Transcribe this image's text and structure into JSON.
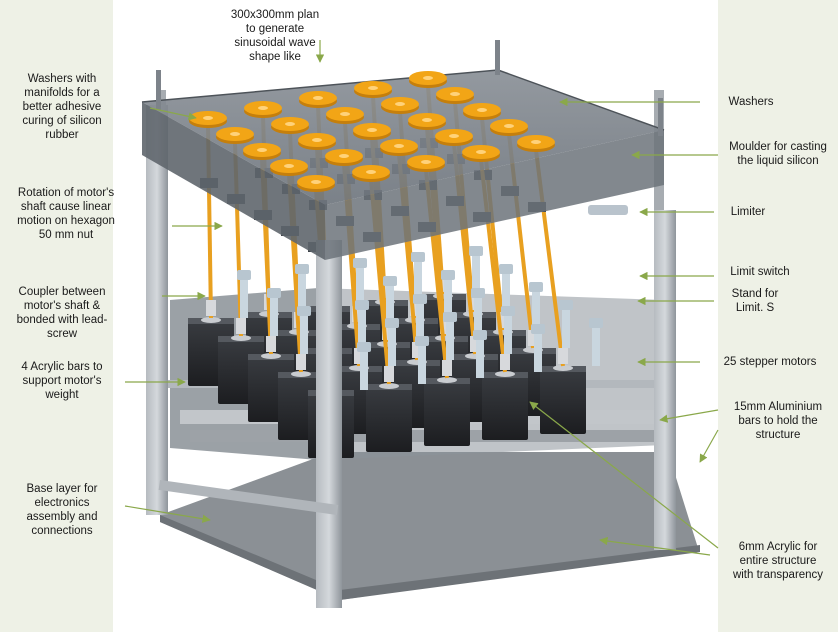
{
  "labels": {
    "top_plan": "300x300mm plan\nto generate\nsinusoidal wave\nshape like",
    "washers_manifolds": "Washers with\nmanifolds for a\nbetter adhesive\ncuring of silicon\nrubber",
    "rotation": "Rotation of motor's\nshaft cause linear\nmotion on hexagon\n50 mm nut",
    "coupler": "Coupler between\nmotor's shaft &\nbonded with lead-\nscrew",
    "acrylic_bars": "4 Acrylic bars to\nsupport motor's\nweight",
    "base_layer": "Base layer for\nelectronics\nassembly and\nconnections",
    "washers": "Washers",
    "moulder": "Moulder for casting\nthe liquid silicon",
    "limiter": "Limiter",
    "limit_switch": "Limit switch",
    "stand": "Stand for\nLimit. S",
    "stepper_motors": "25 stepper motors",
    "aluminium_bars": "15mm Aluminium\nbars to hold the\nstructure",
    "acrylic_6mm": "6mm Acrylic for\nentire structure\nwith transparency"
  },
  "colors": {
    "panel_bg": "#eef1e6",
    "arrow": "#8aa84a",
    "washer": "#f2a516",
    "leadscrew": "#e8a020",
    "frame": "#9ea3a8",
    "motor": "#2a2c30",
    "acrylic": "#7d848c"
  },
  "icons": [
    "arrow-icon"
  ]
}
